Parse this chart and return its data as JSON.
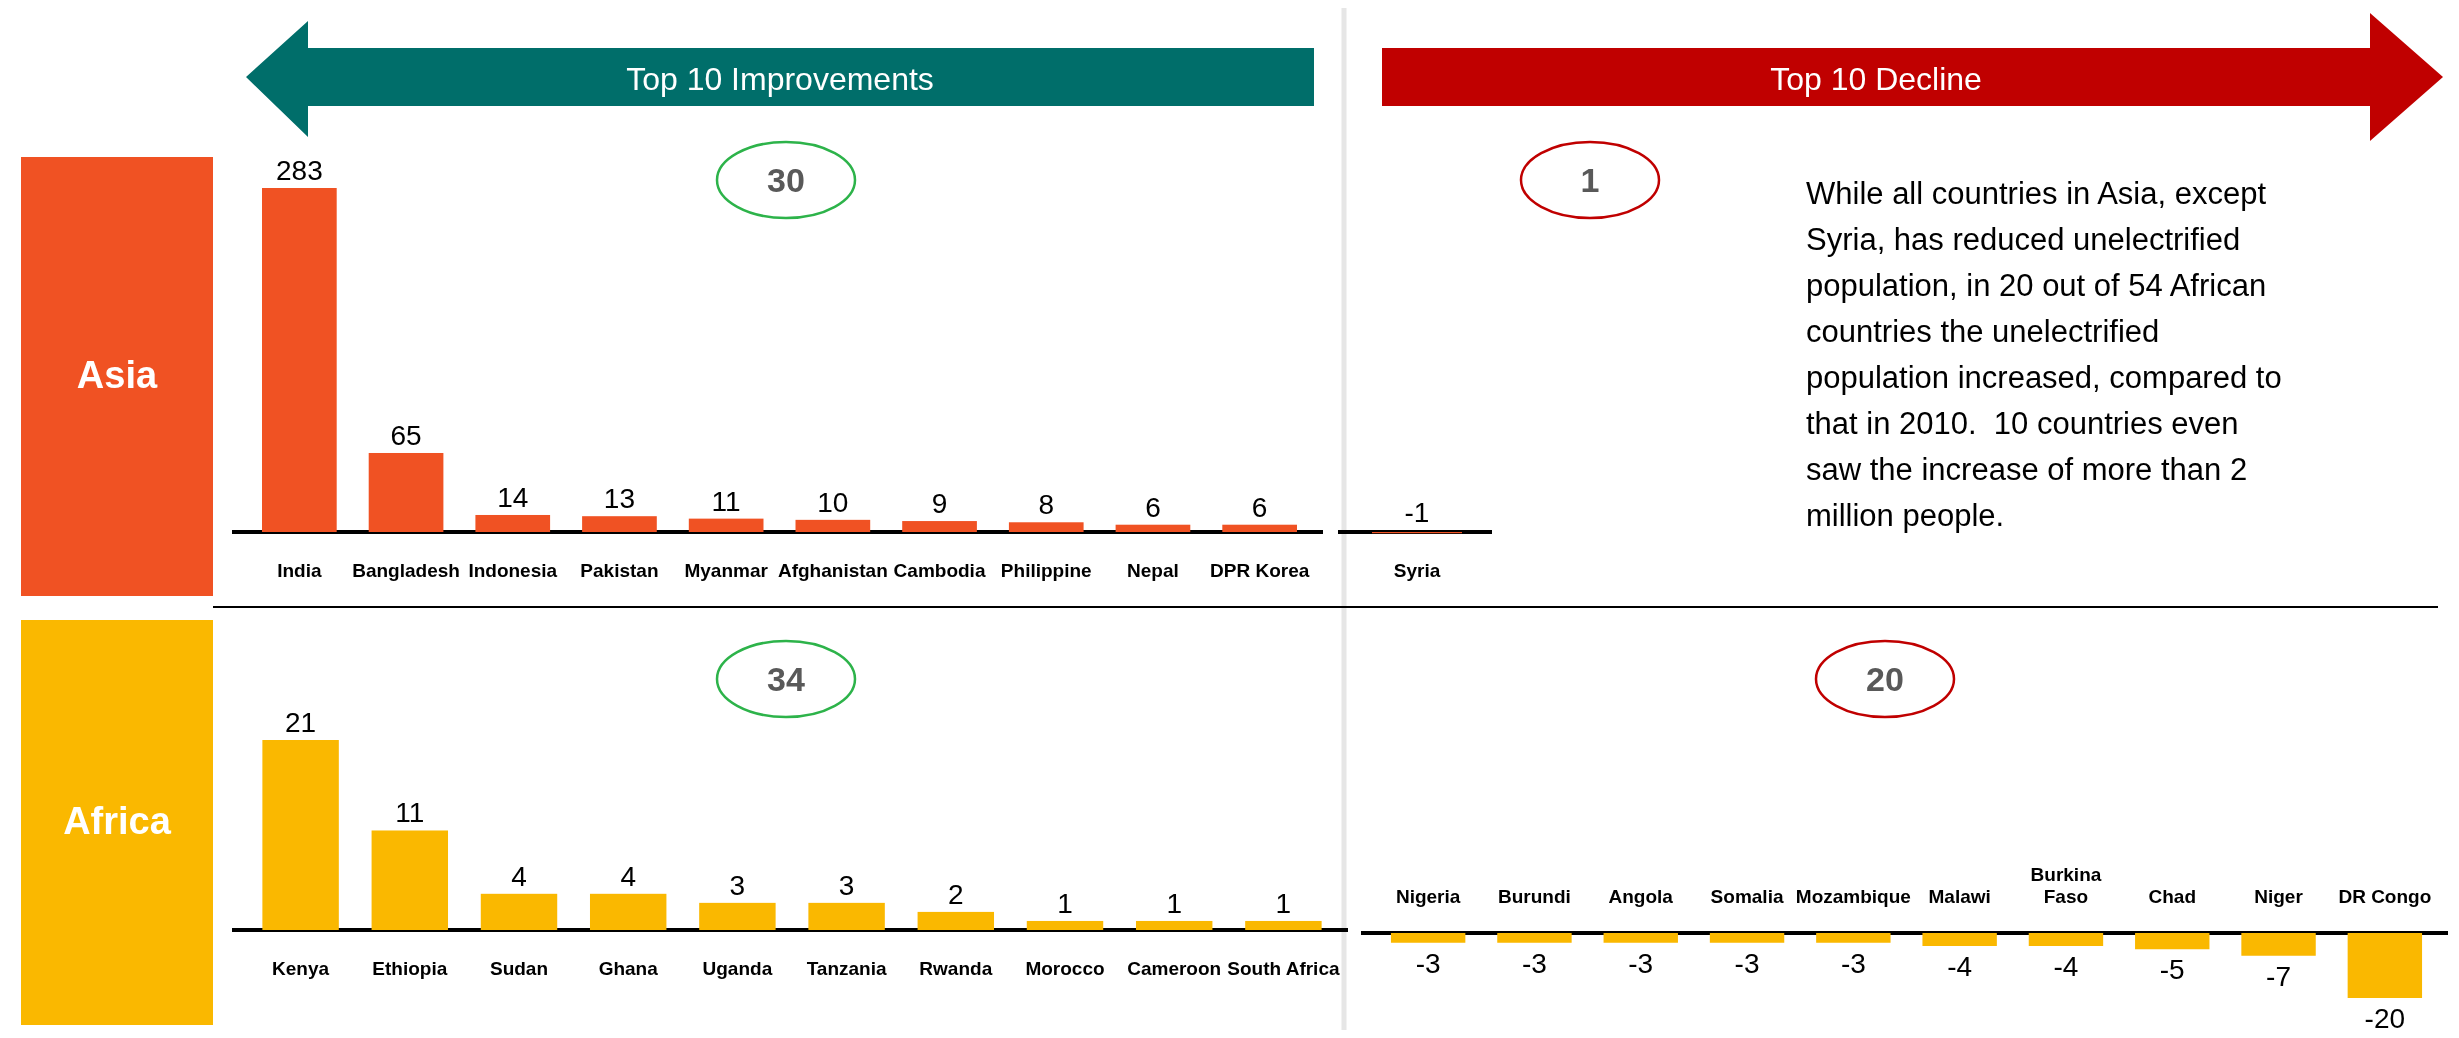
{
  "chart_data": [
    {
      "type": "bar",
      "title": "Top 10 Improvements",
      "ylabel": "Asia",
      "categories": [
        "India",
        "Bangladesh",
        "Indonesia",
        "Pakistan",
        "Myanmar",
        "Afghanistan",
        "Cambodia",
        "Philippine",
        "Nepal",
        "DPR Korea"
      ],
      "values": [
        283,
        65,
        14,
        13,
        11,
        10,
        9,
        8,
        6,
        6
      ],
      "color": "#f05223",
      "data_labels": true,
      "annotations": [
        "30"
      ]
    },
    {
      "type": "bar",
      "categories": [
        "Syria"
      ],
      "values": [
        -1
      ],
      "color": "#f05223",
      "data_labels": true,
      "annotations": [
        "Top 10 Decline",
        "1",
        "While all countries in Asia, except Syria, has reduced unelectrified population, in 20 out of 54 African countries the unelectrified population increased, compared to that in 2010.  10 countries even saw the increase of more than 2 million people."
      ]
    },
    {
      "type": "bar",
      "ylabel": "Africa",
      "categories": [
        "Kenya",
        "Ethiopia",
        "Sudan",
        "Ghana",
        "Uganda",
        "Tanzania",
        "Rwanda",
        "Morocco",
        "Cameroon",
        "South Africa"
      ],
      "values": [
        21,
        11,
        4,
        4,
        3,
        3,
        2,
        1,
        1,
        1
      ],
      "color": "#fab800",
      "data_labels": true,
      "annotations": [
        "34"
      ]
    },
    {
      "type": "bar",
      "categories": [
        "Nigeria",
        "Burundi",
        "Angola",
        "Somalia",
        "Mozambique",
        "Malawi",
        "Burkina Faso",
        "Chad",
        "Niger",
        "DR Congo"
      ],
      "values": [
        -3,
        -3,
        -3,
        -3,
        -3,
        -4,
        -4,
        -5,
        -7,
        -20
      ],
      "color": "#fab800",
      "data_labels": true,
      "annotations": [
        "20"
      ]
    }
  ]
}
